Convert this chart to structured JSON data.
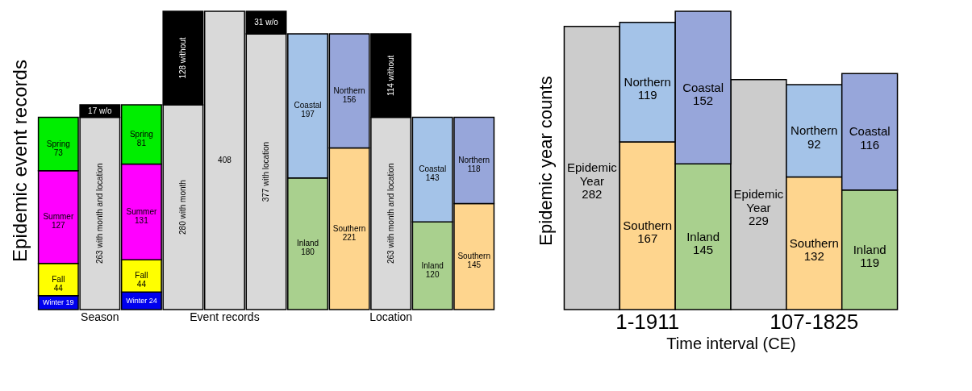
{
  "chart_data": [
    {
      "type": "bar",
      "stacked": true,
      "ylabel": "Epidemic event records",
      "tick_labels": "x",
      "categories": [
        null,
        "Season",
        null,
        null,
        "Event records",
        null,
        null,
        null,
        "Location",
        null,
        null
      ],
      "series": [
        {
          "values": [
            19,
            263,
            24,
            280,
            408,
            377,
            180,
            221,
            263,
            120,
            145
          ],
          "colors": [
            "#0000ee",
            "#d9d9d9",
            "#0000ee",
            "#d9d9d9",
            "#d9d9d9",
            "#d9d9d9",
            "#a9d08e",
            "#fed58e",
            "#d9d9d9",
            "#a9d08e",
            "#fed58e"
          ],
          "value_labels": [
            "Winter\n19",
            "263 with month and location",
            "Winter\n24",
            "280 with month",
            "408",
            "377 with location",
            "Inland\n180",
            "Southern\n221",
            "263 with month and location",
            "Inland\n120",
            "Southern\n145"
          ]
        },
        {
          "values": [
            44,
            17,
            44,
            128,
            null,
            31,
            197,
            156,
            114,
            143,
            118
          ],
          "colors": [
            "#ffff00",
            "#000000",
            "#ffff00",
            "#000000",
            null,
            "#000000",
            "#a4c3e8",
            "#97a6da",
            "#000000",
            "#a4c3e8",
            "#97a6da"
          ],
          "value_labels": [
            "Fall\n44",
            "17 w/o",
            "Fall\n44",
            "128 without",
            null,
            "31 w/o",
            "Coastal\n197",
            "Northern\n156",
            "114 without",
            "Coastal\n143",
            "Northern\n118"
          ]
        },
        {
          "values": [
            127,
            null,
            131,
            null,
            null,
            null,
            null,
            null,
            null,
            null,
            null
          ],
          "colors": [
            "#ff00ff",
            null,
            "#ff00ff",
            null,
            null,
            null,
            null,
            null,
            null,
            null,
            null
          ],
          "value_labels": [
            "Summer\n127",
            null,
            "Summer\n131",
            null,
            null,
            null,
            null,
            null,
            null,
            null,
            null
          ]
        },
        {
          "values": [
            73,
            null,
            81,
            null,
            null,
            null,
            null,
            null,
            null,
            null,
            null
          ],
          "colors": [
            "#00ee00",
            null,
            "#00ee00",
            null,
            null,
            null,
            null,
            null,
            null,
            null,
            null
          ],
          "value_labels": [
            "Spring\n73",
            null,
            "Spring\n81",
            null,
            null,
            null,
            null,
            null,
            null,
            null,
            null
          ]
        }
      ]
    },
    {
      "type": "bar",
      "stacked": true,
      "ylabel": "Epidemic year counts",
      "xlabel": "Time interval (CE)",
      "tick_labels": "x",
      "categories": [
        null,
        "1-1911",
        null,
        null,
        "107-1825",
        null
      ],
      "series": [
        {
          "values": [
            282,
            167,
            145,
            229,
            132,
            119
          ],
          "colors": [
            "#cccccc",
            "#fed58e",
            "#a9d08e",
            "#cccccc",
            "#fed58e",
            "#a9d08e"
          ],
          "value_labels": [
            "Epidemic\nYear\n282",
            "Southern\n167",
            "Inland\n145",
            "Epidemic\nYear\n229",
            "Southern\n132",
            "Inland\n119"
          ]
        },
        {
          "values": [
            null,
            119,
            152,
            null,
            92,
            116
          ],
          "colors": [
            null,
            "#a4c3e8",
            "#97a6da",
            null,
            "#a4c3e8",
            "#97a6da"
          ],
          "value_labels": [
            null,
            "Northern\n119",
            "Coastal\n152",
            null,
            "Northern\n92",
            "Coastal\n116"
          ]
        }
      ]
    }
  ]
}
